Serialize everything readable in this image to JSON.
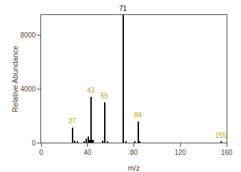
{
  "chart_data": {
    "type": "bar",
    "xlabel": "m/z",
    "ylabel": "Relative Abundance",
    "x": [
      27,
      29,
      31,
      37,
      39,
      41,
      42,
      43,
      44,
      45,
      53,
      55,
      57,
      71,
      73,
      81,
      84,
      85,
      155
    ],
    "values": [
      1100,
      150,
      100,
      80,
      300,
      450,
      200,
      3400,
      180,
      220,
      150,
      3000,
      120,
      9500,
      100,
      120,
      1600,
      120,
      60
    ],
    "color": "#000000",
    "xlim": [
      0,
      160
    ],
    "ylim": [
      0,
      9500
    ],
    "xticks": [
      0,
      40,
      80,
      120,
      160
    ],
    "yticks": [
      0,
      4000,
      8000
    ],
    "grid": false,
    "annotations": [
      {
        "x": 27,
        "text": "27",
        "color": "#c8a000"
      },
      {
        "x": 43,
        "text": "43",
        "color": "#c8a000"
      },
      {
        "x": 55,
        "text": "55",
        "color": "#c8a000"
      },
      {
        "x": 71,
        "text": "71",
        "color": "#000000"
      },
      {
        "x": 84,
        "text": "84",
        "color": "#c8a000"
      },
      {
        "x": 155,
        "text": "155",
        "color": "#c8a000"
      }
    ]
  }
}
